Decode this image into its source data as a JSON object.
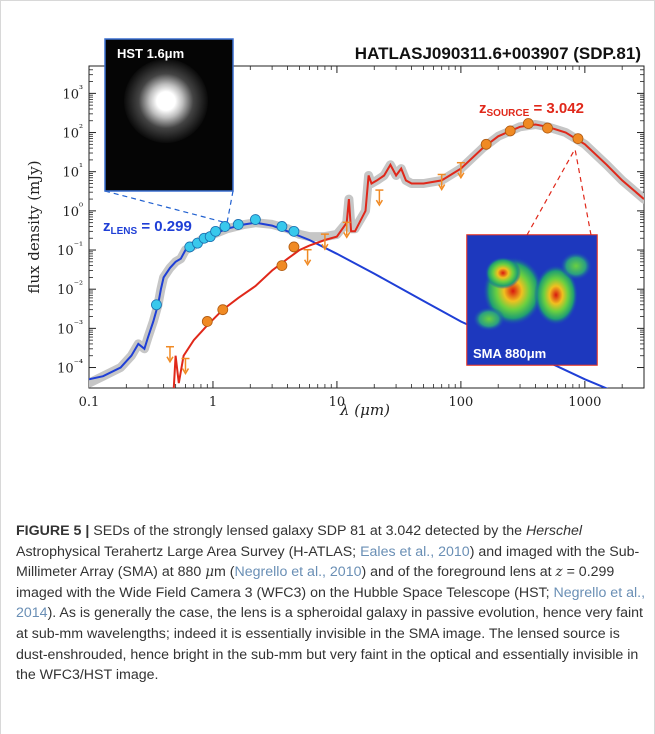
{
  "figure": {
    "title": "HATLASJ090311.6+003907 (SDP.81)",
    "hst_label": "HST 1.6μm",
    "sma_label": "SMA 880μm",
    "z_lens_prefix": "z",
    "z_lens_sub": "LENS",
    "z_lens_value": " = 0.299",
    "z_source_prefix": "z",
    "z_source_sub": "SOURCE",
    "z_source_value": " = 3.042"
  },
  "colors": {
    "lens": "#1f3fd6",
    "source": "#e0281a",
    "points_lens": "#39c8ec",
    "points_source": "#f08a24",
    "model_band": "#bdbdbd"
  },
  "chart_data": {
    "type": "scatter",
    "title": "HATLASJ090311.6+003907 (SDP.81)",
    "xlabel": "λ (μm)",
    "ylabel": "flux density (mJy)",
    "x_scale": "log",
    "y_scale": "log",
    "xlim": [
      0.1,
      3000
    ],
    "ylim": [
      3e-05,
      5000
    ],
    "x_ticks": [
      "0.1",
      "1",
      "10",
      "100",
      "1000"
    ],
    "y_ticks": [
      "10⁻⁴",
      "10⁻³",
      "10⁻²",
      "10⁻¹",
      "10⁰",
      "10¹",
      "10²",
      "10³"
    ],
    "series": [
      {
        "name": "z_LENS = 0.299",
        "color": "#39c8ec",
        "x": [
          0.35,
          0.65,
          0.75,
          0.85,
          0.95,
          1.05,
          1.25,
          1.6,
          2.2,
          3.6,
          4.5
        ],
        "y": [
          0.004,
          0.12,
          0.15,
          0.2,
          0.22,
          0.3,
          0.4,
          0.45,
          0.6,
          0.4,
          0.3
        ]
      },
      {
        "name": "z_SOURCE = 3.042",
        "color": "#f08a24",
        "x": [
          0.9,
          1.2,
          3.6,
          4.5,
          160,
          250,
          350,
          500,
          880
        ],
        "y": [
          0.0015,
          0.003,
          0.04,
          0.12,
          50,
          110,
          170,
          130,
          70
        ]
      }
    ],
    "upper_limits": {
      "color": "#f08a24",
      "x": [
        0.45,
        0.6,
        5.8,
        8.0,
        12,
        22,
        70,
        100
      ],
      "y": [
        0.0002,
        0.0001,
        0.06,
        0.15,
        0.3,
        2,
        5,
        10
      ]
    },
    "model_lines": {
      "lens": "blue",
      "source": "red",
      "total": "grey band"
    }
  },
  "caption": {
    "label": "FIGURE 5 |",
    "t1": " SEDs of the strongly lensed galaxy SDP 81 at 3.042 detected by the ",
    "herschel": "Herschel",
    "t2": " Astrophysical Terahertz Large Area Survey (H-ATLAS; ",
    "c1": "Eales et al., 2010",
    "t3": ") and imaged with the Sub-Millimeter Array (SMA) at 880 ",
    "mu": "μ",
    "t3b": "m (",
    "c2": "Negrello et al., 2010",
    "t4": ") and of the foreground lens at ",
    "zeq": "z",
    "t4b": " = 0.299 imaged with the Wide Field Camera 3 (WFC3) on the Hubble Space Telescope (HST; ",
    "c3": "Negrello et al., 2014",
    "t5": "). As is generally the case, the lens is a spheroidal galaxy in passive evolution, hence very faint at sub-mm wavelengths; indeed it is essentially invisible in the SMA image. The lensed source is dust-enshrouded, hence bright in the sub-mm but very faint in the optical and essentially invisible in the WFC3/HST image."
  }
}
